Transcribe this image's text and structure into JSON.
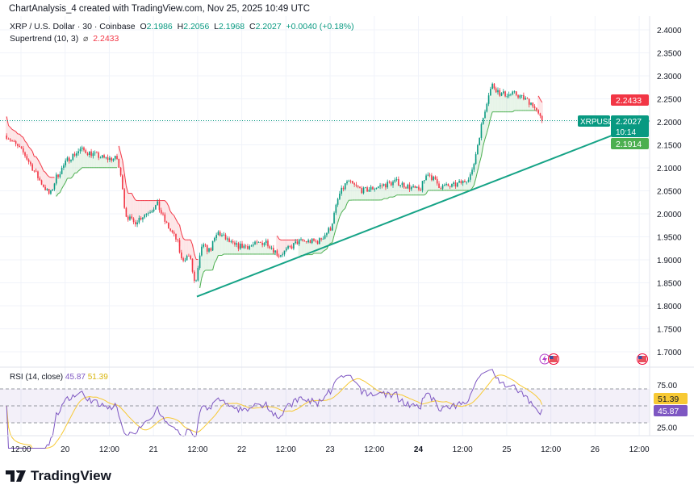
{
  "credit": "ChartAnalysis_4 created with TradingView.com, Nov 25, 2025 10:49 UTC",
  "symbol_line": {
    "title": "XRP / U.S. Dollar · 30 · Coinbase",
    "o_label": "O",
    "o": "2.1986",
    "h_label": "H",
    "h": "2.2056",
    "l_label": "L",
    "l": "2.1968",
    "c_label": "C",
    "c": "2.2027",
    "change": "+0.0040 (+0.18%)"
  },
  "indicator_line": {
    "name": "Supertrend (10, 3)",
    "icon": "hidden-eye-icon",
    "value": "2.2433"
  },
  "rsi_legend": {
    "name": "RSI (14, close)",
    "rsi": "45.87",
    "ma": "51.39"
  },
  "badges": {
    "supertrend_up": "2.2433",
    "symbol": "XRPUSD",
    "last": "2.2027",
    "countdown": "10:14",
    "supertrend_down": "2.1914",
    "rsi_ma": "51.39",
    "rsi": "45.87"
  },
  "logo": "TradingView",
  "colors": {
    "up": "#089981",
    "down": "#f23645",
    "rsi": "#7e57c2",
    "rsi_ma": "#f7c934",
    "st_up": "#4caf50",
    "st_down": "#f23645",
    "trendline": "#15a386"
  },
  "chart_data": {
    "type": "candlestick",
    "title": "XRP / U.S. Dollar · 30 · Coinbase",
    "time_unit": "hours since Nov 19 00:00",
    "ylim": [
      1.67,
      2.42
    ],
    "y_ticks": [
      "2.4000",
      "2.3500",
      "2.3000",
      "2.2500",
      "2.2000",
      "2.1500",
      "2.1000",
      "2.0500",
      "2.0000",
      "1.9500",
      "1.9000",
      "1.8500",
      "1.8000",
      "1.7500",
      "1.7000"
    ],
    "x_ticks": [
      {
        "t": 12,
        "label": "12:00"
      },
      {
        "t": 24,
        "label": "20"
      },
      {
        "t": 36,
        "label": "12:00"
      },
      {
        "t": 48,
        "label": "21"
      },
      {
        "t": 60,
        "label": "12:00"
      },
      {
        "t": 72,
        "label": "22"
      },
      {
        "t": 84,
        "label": "12:00"
      },
      {
        "t": 96,
        "label": "23"
      },
      {
        "t": 108,
        "label": "12:00"
      },
      {
        "t": 120,
        "label": "24",
        "bold": true
      },
      {
        "t": 132,
        "label": "12:00"
      },
      {
        "t": 144,
        "label": "25"
      },
      {
        "t": 156,
        "label": "12:00"
      },
      {
        "t": 168,
        "label": "26"
      },
      {
        "t": 180,
        "label": "12:00"
      }
    ],
    "price_path": [
      [
        8.1,
        2.17
      ],
      [
        12.9,
        2.13
      ],
      [
        17.3,
        2.07
      ],
      [
        19.9,
        2.04
      ],
      [
        21.6,
        2.08
      ],
      [
        24.9,
        2.12
      ],
      [
        28.2,
        2.14
      ],
      [
        31.5,
        2.13
      ],
      [
        34.8,
        2.12
      ],
      [
        38.1,
        2.12
      ],
      [
        39.6,
        2.06
      ],
      [
        40.3,
        2.0
      ],
      [
        42.5,
        1.98
      ],
      [
        45.8,
        2.0
      ],
      [
        49.1,
        2.02
      ],
      [
        51.3,
        1.98
      ],
      [
        54.5,
        1.94
      ],
      [
        55.6,
        1.9
      ],
      [
        57.8,
        1.91
      ],
      [
        59.4,
        1.84
      ],
      [
        61.1,
        1.93
      ],
      [
        63.3,
        1.92
      ],
      [
        65.5,
        1.96
      ],
      [
        69.9,
        1.93
      ],
      [
        74.3,
        1.93
      ],
      [
        78.7,
        1.94
      ],
      [
        82.0,
        1.91
      ],
      [
        84.1,
        1.92
      ],
      [
        87.4,
        1.94
      ],
      [
        92.9,
        1.94
      ],
      [
        96.2,
        1.97
      ],
      [
        98.4,
        2.04
      ],
      [
        100.6,
        2.07
      ],
      [
        105.0,
        2.05
      ],
      [
        109.4,
        2.06
      ],
      [
        113.8,
        2.07
      ],
      [
        117.0,
        2.06
      ],
      [
        120.3,
        2.05
      ],
      [
        122.5,
        2.09
      ],
      [
        125.8,
        2.06
      ],
      [
        129.1,
        2.06
      ],
      [
        132.4,
        2.07
      ],
      [
        134.6,
        2.09
      ],
      [
        136.8,
        2.18
      ],
      [
        139.0,
        2.26
      ],
      [
        140.1,
        2.28
      ],
      [
        142.4,
        2.26
      ],
      [
        146.6,
        2.26
      ],
      [
        151.0,
        2.24
      ],
      [
        152.8,
        2.21
      ],
      [
        153.9,
        2.2027
      ]
    ],
    "trendline": [
      [
        59.8,
        1.82
      ],
      [
        182.8,
        2.202
      ]
    ],
    "current_price": 2.2027,
    "rsi": {
      "period": 14,
      "ma_period": 14,
      "bands": [
        70,
        50,
        30
      ],
      "y_ticks": [
        "75.00",
        "25.00"
      ],
      "last": 45.87,
      "ma_last": 51.39
    }
  }
}
